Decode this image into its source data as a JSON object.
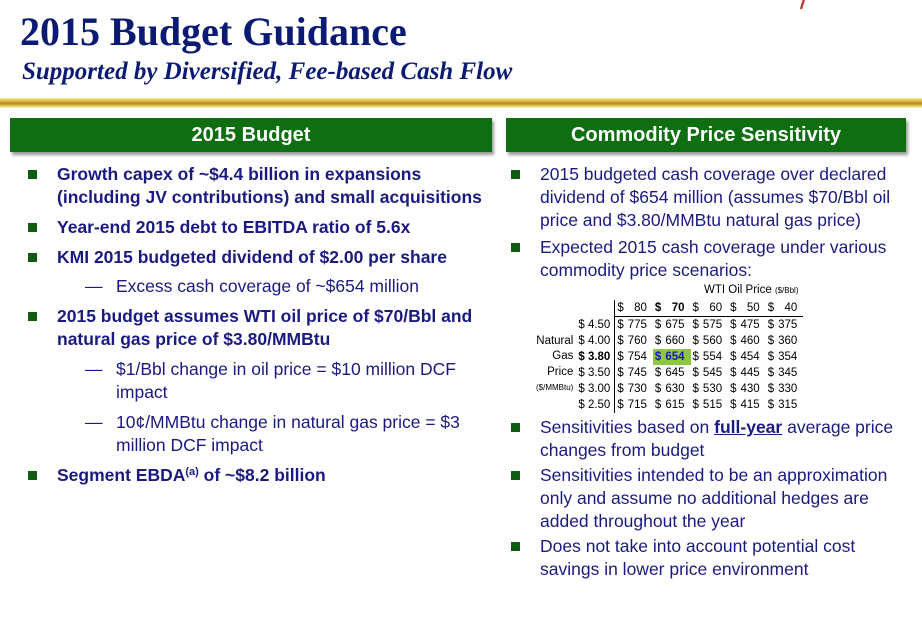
{
  "header": {
    "title": "2015 Budget Guidance",
    "subtitle": "Supported by Diversified, Fee-based Cash Flow"
  },
  "left_panel": {
    "heading": "2015 Budget",
    "bullets": [
      "Growth capex of ~$4.4 billion in expansions (including JV contributions) and small acquisitions",
      "Year-end 2015 debt to EBITDA ratio of 5.6x",
      "KMI 2015 budgeted dividend of $2.00 per share",
      "2015 budget assumes WTI oil price of $70/Bbl and natural gas price of $3.80/MMBtu"
    ],
    "sub_dividend": "Excess cash coverage of ~$654 million",
    "sub_oil": "$1/Bbl change in oil price = $10 million DCF impact",
    "sub_gas": "10¢/MMBtu change in natural gas price = $3 million DCF impact",
    "segment_pre": "Segment EBDA",
    "segment_sup": "(a)",
    "segment_post": " of ~$8.2 billion",
    "dash": "—"
  },
  "right_panel": {
    "heading": "Commodity Price Sensitivity",
    "bullets": [
      "2015 budgeted cash coverage over declared dividend of $654 million (assumes $70/Bbl oil price and $3.80/MMBtu natural gas price)",
      "Expected 2015 cash coverage under various commodity price scenarios:"
    ],
    "sens_pre": "Sensitivities based on ",
    "sens_ul": "full-year",
    "sens_post": " average price changes from budget",
    "bullets_after": [
      "Sensitivities intended to be an approximation only and assume no additional hedges are added throughout the year",
      "Does not take into account potential cost savings in lower price environment"
    ]
  },
  "sensitivity_table": {
    "wti_label": "WTI Oil Price",
    "wti_unit": "($/Bbl)",
    "gas_label_lines": [
      "Natural",
      "Gas",
      "Price",
      "($/MMBtu)"
    ],
    "currency": "$",
    "oil_prices": [
      "80",
      "70",
      "60",
      "50",
      "40"
    ],
    "gas_prices": [
      "4.50",
      "4.00",
      "3.80",
      "3.50",
      "3.00",
      "2.50"
    ],
    "rows": [
      [
        "775",
        "675",
        "575",
        "475",
        "375"
      ],
      [
        "760",
        "660",
        "560",
        "460",
        "360"
      ],
      [
        "754",
        "654",
        "554",
        "454",
        "354"
      ],
      [
        "745",
        "645",
        "545",
        "445",
        "345"
      ],
      [
        "730",
        "630",
        "530",
        "430",
        "330"
      ],
      [
        "715",
        "615",
        "515",
        "415",
        "315"
      ]
    ],
    "budget_col_index": 1,
    "budget_row_index": 2
  },
  "colors": {
    "title": "#0b1a72",
    "text": "#1a1a80",
    "panel_header": "#0f6d12",
    "bullet": "#0f5c12",
    "highlight": "#8dc73f",
    "rule": "#c9a028"
  }
}
